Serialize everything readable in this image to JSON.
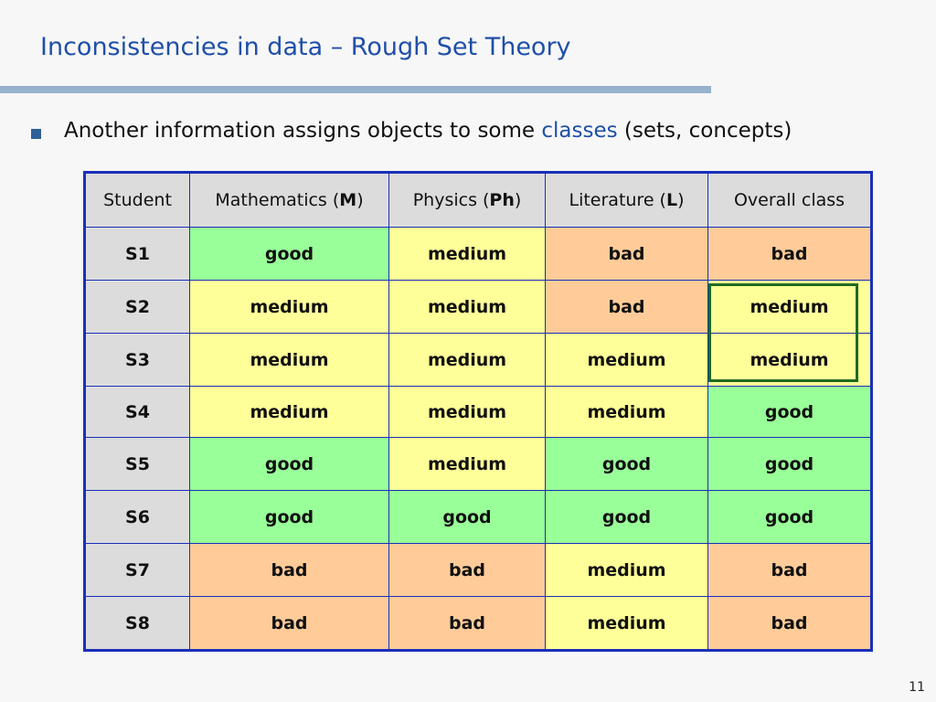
{
  "slide": {
    "title": "Inconsistencies in data – Rough Set Theory",
    "bullet": {
      "before": "Another information assigns objects to some ",
      "highlight": "classes",
      "after": " (sets, concepts)"
    },
    "page_number": "11"
  },
  "table": {
    "headers": [
      {
        "text": "Student",
        "abbr": "",
        "suffix": ""
      },
      {
        "text": "Mathematics (",
        "abbr": "M",
        "suffix": ")"
      },
      {
        "text": "Physics (",
        "abbr": "Ph",
        "suffix": ")"
      },
      {
        "text": "Literature (",
        "abbr": "L",
        "suffix": ")"
      },
      {
        "text": "Overall class",
        "abbr": "",
        "suffix": ""
      }
    ],
    "rows": [
      {
        "student": "S1",
        "values": [
          "good",
          "medium",
          "bad",
          "bad"
        ]
      },
      {
        "student": "S2",
        "values": [
          "medium",
          "medium",
          "bad",
          "medium"
        ]
      },
      {
        "student": "S3",
        "values": [
          "medium",
          "medium",
          "medium",
          "medium"
        ]
      },
      {
        "student": "S4",
        "values": [
          "medium",
          "medium",
          "medium",
          "good"
        ]
      },
      {
        "student": "S5",
        "values": [
          "good",
          "medium",
          "good",
          "good"
        ]
      },
      {
        "student": "S6",
        "values": [
          "good",
          "good",
          "good",
          "good"
        ]
      },
      {
        "student": "S7",
        "values": [
          "bad",
          "bad",
          "medium",
          "bad"
        ]
      },
      {
        "student": "S8",
        "values": [
          "bad",
          "bad",
          "medium",
          "bad"
        ]
      }
    ],
    "highlighted_rows": [
      "S2",
      "S3"
    ],
    "highlighted_column": "Overall class"
  },
  "colors": {
    "title": "#1f4fa8",
    "title_bar": "#97b2cc",
    "bullet": "#2f6096",
    "table_border": "#1a2fb8",
    "header_bg": "#dcdcdc",
    "good": "#99ff99",
    "medium": "#ffff99",
    "bad": "#ffcc99",
    "highlight_box": "#1f6b1f"
  }
}
